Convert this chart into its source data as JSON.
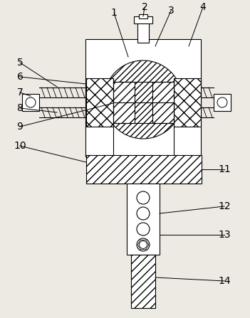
{
  "background_color": "#ede9e3",
  "line_color": "#000000",
  "figsize": [
    3.51,
    4.47
  ],
  "dpi": 100,
  "labels_left": [
    "5",
    "6",
    "7",
    "8",
    "9",
    "10"
  ],
  "labels_right": [
    "11",
    "12",
    "13",
    "14"
  ],
  "labels_top": [
    "1",
    "2",
    "3",
    "4"
  ]
}
